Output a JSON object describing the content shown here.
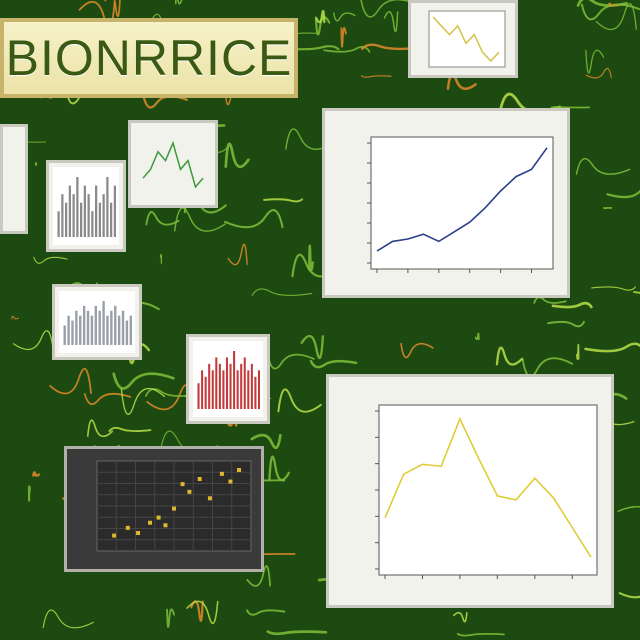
{
  "banner": {
    "title": "BIONRRICE"
  },
  "colors": {
    "board": "#1c4a10",
    "vine": "#7fc03a",
    "accent": "#e08a2a"
  },
  "chart_data": [
    {
      "type": "line",
      "title": "",
      "xlabel": "",
      "ylabel": "",
      "x": [
        0,
        1,
        2,
        3,
        4,
        5,
        6,
        7,
        8,
        9,
        10,
        11
      ],
      "series": [
        {
          "values": [
            1.0,
            1.8,
            2.0,
            2.4,
            1.8,
            2.6,
            3.4,
            4.6,
            6.0,
            7.2,
            7.8,
            9.6
          ]
        }
      ],
      "ylim": [
        0,
        10
      ],
      "grid": false
    },
    {
      "type": "line",
      "title": "",
      "xlabel": "",
      "ylabel": "",
      "x": [
        0,
        1,
        2,
        3,
        4,
        5,
        6,
        7,
        8,
        9,
        10,
        11
      ],
      "series": [
        {
          "values": [
            2.6,
            4.8,
            5.3,
            5.2,
            7.6,
            5.6,
            3.7,
            3.5,
            4.6,
            3.6,
            2.1,
            0.6
          ]
        }
      ],
      "ylim": [
        0,
        8
      ],
      "grid": false
    },
    {
      "type": "scatter",
      "x": [
        1.0,
        1.8,
        2.4,
        3.1,
        3.6,
        4.0,
        4.5,
        5.0,
        5.4,
        6.0,
        6.6,
        7.3,
        7.8,
        8.3
      ],
      "y": [
        1.2,
        1.8,
        1.4,
        2.2,
        2.6,
        2.0,
        3.3,
        5.2,
        4.6,
        5.6,
        4.1,
        6.0,
        5.4,
        6.3
      ],
      "xlim": [
        0,
        9
      ],
      "ylim": [
        0,
        7
      ]
    },
    {
      "type": "bar",
      "values": [
        3,
        5,
        4,
        6,
        5,
        7,
        4,
        6,
        5,
        3,
        6,
        4,
        5,
        7,
        4,
        6
      ]
    },
    {
      "type": "bar",
      "values": [
        4,
        6,
        5,
        7,
        6,
        8,
        7,
        6,
        8,
        7,
        9,
        6,
        7,
        8,
        6,
        7,
        5,
        6
      ]
    },
    {
      "type": "line",
      "values": [
        3,
        4,
        6,
        5,
        7,
        4,
        5,
        2,
        3
      ]
    },
    {
      "type": "line",
      "values": [
        7,
        6,
        5,
        6,
        4,
        5,
        3,
        2,
        3
      ]
    }
  ]
}
